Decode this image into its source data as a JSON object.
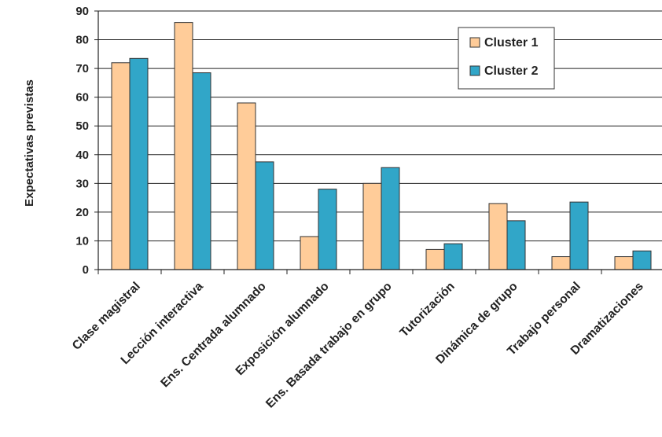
{
  "chart_data": {
    "type": "bar",
    "title": "",
    "xlabel": "",
    "ylabel": "Expectativas previstas",
    "ylim": [
      0,
      90
    ],
    "yticks": [
      0,
      10,
      20,
      30,
      40,
      50,
      60,
      70,
      80,
      90
    ],
    "grid": "horizontal",
    "legend_position": "top-right",
    "categories": [
      "Clase magistral",
      "Lección interactiva",
      "Ens. Centrada alumnado",
      "Exposición alumnado",
      "Ens. Basada trabajo en grupo",
      "Tutorización",
      "Dinámica de grupo",
      "Trabajo personal",
      "Dramatizaciones"
    ],
    "series": [
      {
        "name": "Cluster 1",
        "color": "#FFCC99",
        "values": [
          72,
          86,
          58,
          11.5,
          30,
          7,
          23,
          4.5,
          4.5
        ]
      },
      {
        "name": "Cluster 2",
        "color": "#31A6C8",
        "values": [
          73.5,
          68.5,
          37.5,
          28,
          35.5,
          9,
          17,
          23.5,
          6.5
        ]
      }
    ]
  }
}
